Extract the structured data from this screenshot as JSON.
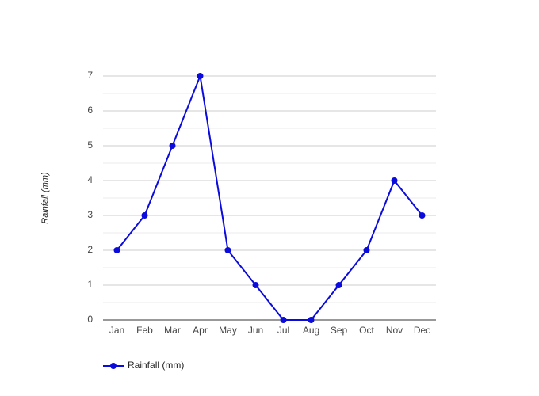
{
  "chart_data": {
    "type": "line",
    "y_label": "Rainfall (mm)",
    "categories": [
      "Jan",
      "Feb",
      "Mar",
      "Apr",
      "May",
      "Jun",
      "Jul",
      "Aug",
      "Sep",
      "Oct",
      "Nov",
      "Dec"
    ],
    "series": [
      {
        "name": "Rainfall (mm)",
        "color": "#0b0bdc",
        "values": [
          2,
          3,
          5,
          7,
          2,
          1,
          0,
          0,
          1,
          2,
          4,
          3
        ]
      }
    ],
    "ylim": [
      0,
      7
    ],
    "yticks": [
      0,
      1,
      2,
      3,
      4,
      5,
      6,
      7
    ],
    "grid": true,
    "minor_grid": true,
    "legend": "bottom"
  }
}
